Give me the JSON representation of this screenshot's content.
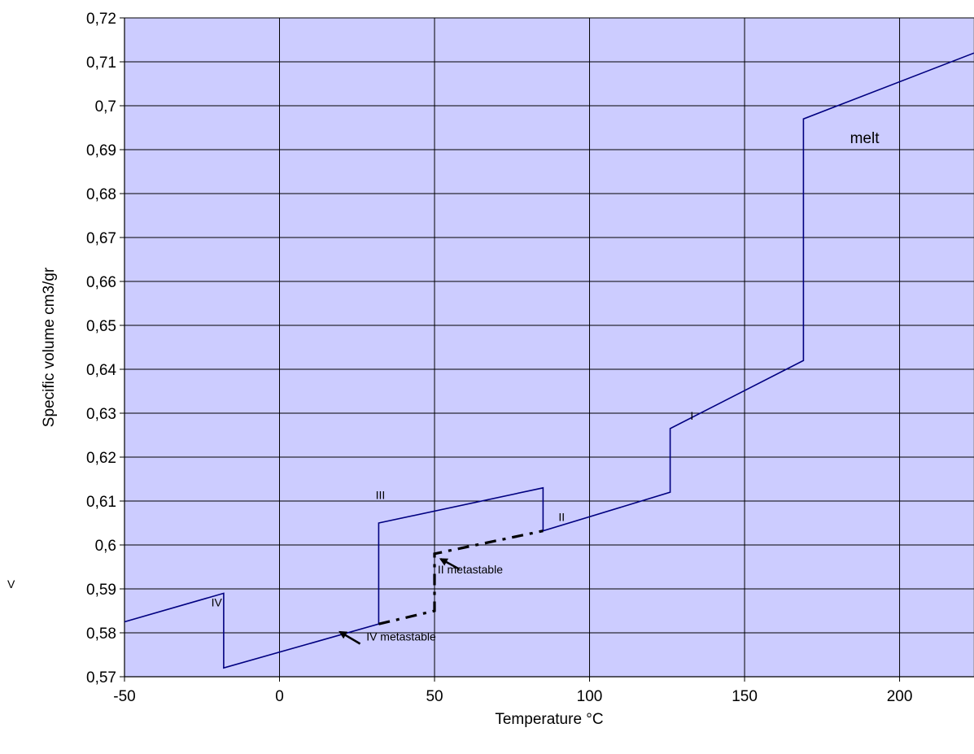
{
  "chart_data": {
    "type": "line",
    "xlabel": "Temperature °C",
    "ylabel": "Specific volume cm3/gr",
    "side_label": "V",
    "xlim": [
      -50,
      224
    ],
    "ylim": [
      0.57,
      0.72
    ],
    "x_ticks": [
      -50,
      0,
      50,
      100,
      150,
      200
    ],
    "x_tick_labels": [
      "-50",
      "0",
      "50",
      "100",
      "150",
      "200"
    ],
    "y_ticks": [
      0.57,
      0.58,
      0.59,
      0.6,
      0.61,
      0.62,
      0.63,
      0.64,
      0.65,
      0.66,
      0.67,
      0.68,
      0.69,
      0.7,
      0.71,
      0.72
    ],
    "y_tick_labels": [
      "0,57",
      "0,58",
      "0,59",
      "0,6",
      "0,61",
      "0,62",
      "0,63",
      "0,64",
      "0,65",
      "0,66",
      "0,67",
      "0,68",
      "0,69",
      "0,7",
      "0,71",
      "0,72"
    ],
    "grid": true,
    "plot_background": "#ccccff",
    "line_color": "#000080",
    "series": [
      {
        "style": "solid",
        "x": [
          -50,
          -18,
          -18,
          32,
          32,
          85,
          85,
          126,
          126,
          169,
          169,
          224
        ],
        "y": [
          0.5825,
          0.589,
          0.572,
          0.582,
          0.605,
          0.613,
          0.6032,
          0.612,
          0.6265,
          0.642,
          0.697,
          0.712
        ]
      },
      {
        "style": "dashed",
        "x": [
          32,
          50,
          50,
          85
        ],
        "y": [
          0.582,
          0.585,
          0.598,
          0.6032
        ]
      }
    ],
    "annotations": [
      {
        "text": "melt",
        "x": 184,
        "y": 0.6915,
        "size": "large"
      },
      {
        "text": "I",
        "x": 132.5,
        "y": 0.6285,
        "size": "small"
      },
      {
        "text": "II",
        "x": 90,
        "y": 0.6055,
        "size": "small"
      },
      {
        "text": "III",
        "x": 31,
        "y": 0.6105,
        "size": "small"
      },
      {
        "text": "IV",
        "x": -22,
        "y": 0.586,
        "size": "small"
      },
      {
        "text": "II metastable",
        "x": 51,
        "y": 0.5935,
        "size": "small"
      },
      {
        "text": "IV metastable",
        "x": 28,
        "y": 0.5782,
        "size": "small"
      }
    ],
    "arrows": [
      {
        "from": [
          58,
          0.5945
        ],
        "to": [
          52,
          0.5968
        ]
      },
      {
        "from": [
          26,
          0.5775
        ],
        "to": [
          19.5,
          0.5802
        ]
      }
    ]
  }
}
